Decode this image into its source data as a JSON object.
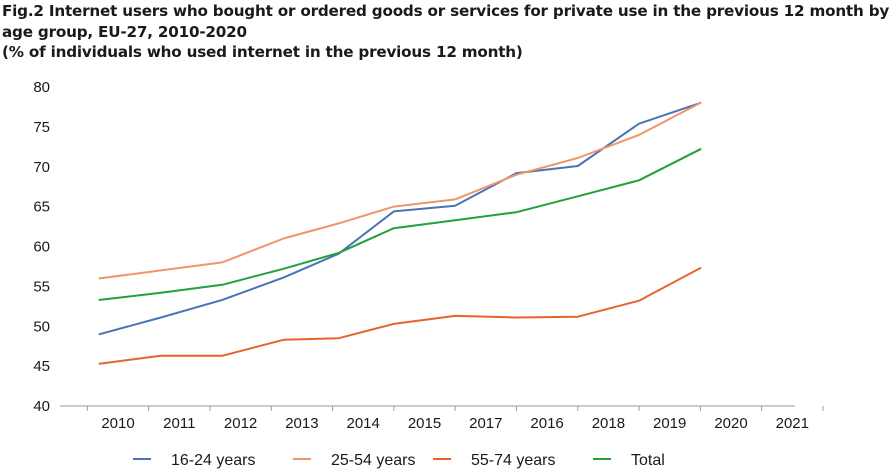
{
  "chart_data": {
    "type": "line",
    "title": [
      "Fig.2 Internet users who bought or ordered goods or services for private use in the previous 12 month by",
      "age group, EU-27, 2010-2020",
      "(% of individuals who used internet in the previous 12 month)"
    ],
    "x_tick_labels": [
      "2010",
      "2011",
      "2012",
      "2013",
      "2014",
      "2015",
      "2017",
      "2016",
      "2018",
      "2019",
      "2020",
      "2021"
    ],
    "y_tick_labels": [
      "40",
      "45",
      "50",
      "55",
      "60",
      "65",
      "70",
      "75",
      "80"
    ],
    "ylim": [
      40,
      80
    ],
    "xlabel": "",
    "ylabel": "",
    "grid": false,
    "legend_position": "bottom",
    "series": [
      {
        "name": "16-24 years",
        "color": "#4a73b8",
        "points": [
          [
            -0.3,
            49
          ],
          [
            0.7,
            51.1
          ],
          [
            1.7,
            53.3
          ],
          [
            2.7,
            56.1
          ],
          [
            3.6,
            59.1
          ],
          [
            4.5,
            64.4
          ],
          [
            5.5,
            65.1
          ],
          [
            6.5,
            69.2
          ],
          [
            7.5,
            70.1
          ],
          [
            8.5,
            75.4
          ],
          [
            9.5,
            78
          ]
        ]
      },
      {
        "name": "25-54 years",
        "color": "#f0956a",
        "points": [
          [
            -0.3,
            56
          ],
          [
            0.7,
            57
          ],
          [
            1.7,
            58
          ],
          [
            2.7,
            61
          ],
          [
            3.6,
            62.9
          ],
          [
            4.5,
            65
          ],
          [
            5.5,
            65.9
          ],
          [
            6.5,
            69
          ],
          [
            7.5,
            71.1
          ],
          [
            8.5,
            74
          ],
          [
            9.5,
            78
          ]
        ]
      },
      {
        "name": "55-74 years",
        "color": "#e8632f",
        "points": [
          [
            -0.3,
            45.3
          ],
          [
            0.7,
            46.3
          ],
          [
            1.7,
            46.3
          ],
          [
            2.7,
            48.3
          ],
          [
            3.6,
            48.5
          ],
          [
            4.5,
            50.3
          ],
          [
            5.5,
            51.3
          ],
          [
            6.5,
            51.1
          ],
          [
            7.5,
            51.2
          ],
          [
            8.5,
            53.2
          ],
          [
            9.5,
            57.3
          ]
        ]
      },
      {
        "name": "Total",
        "color": "#21a03c",
        "points": [
          [
            -0.3,
            53.3
          ],
          [
            0.7,
            54.2
          ],
          [
            1.7,
            55.2
          ],
          [
            2.7,
            57.2
          ],
          [
            3.6,
            59.2
          ],
          [
            4.5,
            62.3
          ],
          [
            5.5,
            63.3
          ],
          [
            6.5,
            64.3
          ],
          [
            7.5,
            66.3
          ],
          [
            8.5,
            68.3
          ],
          [
            9.5,
            72.2
          ]
        ]
      }
    ]
  }
}
